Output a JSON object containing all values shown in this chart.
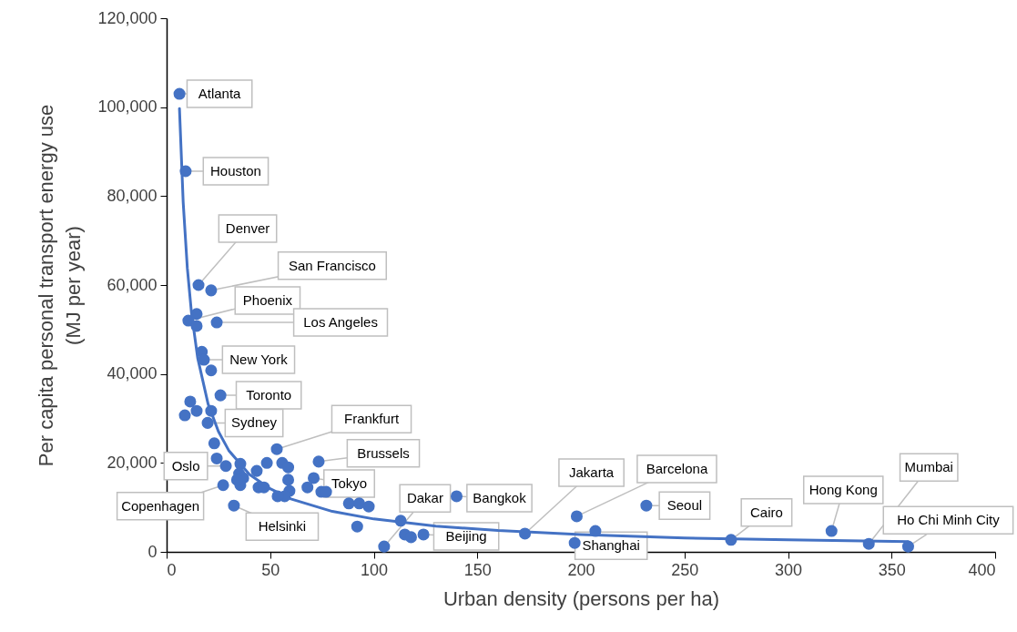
{
  "chart_data": {
    "type": "scatter",
    "xlabel": "Urban density (persons per ha)",
    "ylabel": "Per capita personal transport energy use (MJ per year)",
    "xlim": [
      0,
      400
    ],
    "xticks": [
      0,
      50,
      100,
      150,
      200,
      250,
      300,
      350,
      400
    ],
    "ylim": [
      0,
      120000
    ],
    "yticks": [
      0,
      {
        "value": 20000,
        "label": "20,000"
      },
      {
        "value": 40000,
        "label": "40,000"
      },
      {
        "value": 60000,
        "label": "60,000"
      },
      {
        "value": 80000,
        "label": "80,000"
      },
      {
        "value": 100000,
        "label": "100,000"
      },
      {
        "value": 120000,
        "label": "120,000"
      }
    ],
    "grid": false,
    "marker": "circle",
    "series": [
      {
        "color": "#4472c4",
        "x": [
          6.2,
          9.2,
          15.4,
          21.5,
          10.5,
          14.5,
          14.5,
          24.2,
          17,
          18,
          21.5,
          26,
          11.4,
          8.8,
          14.5,
          21.5,
          19.8,
          23,
          28.6,
          24.2,
          35.6,
          35,
          37,
          35.6,
          34,
          43.5,
          48.4,
          44.4,
          47,
          55.8,
          58.7,
          58.7,
          59.3,
          57,
          53.6,
          27.3,
          32.5,
          53.2,
          73.4,
          71,
          68,
          74.7,
          77,
          88,
          93,
          97.6,
          92,
          105,
          113,
          115,
          118,
          124,
          140,
          173,
          198,
          197,
          207,
          231.6,
          272.5,
          321,
          339,
          358
        ],
        "values": [
          103000,
          85600,
          60000,
          58800,
          52000,
          53500,
          50800,
          51600,
          45000,
          43200,
          40800,
          35200,
          33800,
          30700,
          31700,
          31700,
          29000,
          24400,
          19300,
          21000,
          19800,
          17600,
          16600,
          15000,
          16200,
          18200,
          20000,
          14500,
          14500,
          20000,
          19000,
          16200,
          13700,
          12500,
          12500,
          15000,
          10400,
          23100,
          20300,
          16600,
          14500,
          13500,
          13500,
          10900,
          10900,
          10200,
          5700,
          1200,
          7000,
          3900,
          3300,
          3900,
          12500,
          4100,
          8000,
          2000,
          4700,
          10400,
          2700,
          4700,
          1800,
          1200
        ]
      },
      {
        "type": "line",
        "color": "#4472c4",
        "marker": "none",
        "x": [
          6.2,
          8,
          10,
          12,
          15,
          20,
          25,
          30,
          40,
          50,
          60,
          80,
          100,
          130,
          160,
          200,
          250,
          300,
          358
        ],
        "values": [
          99700,
          78600,
          63800,
          53800,
          43600,
          33300,
          27100,
          22800,
          17400,
          14200,
          11900,
          9100,
          7400,
          5800,
          4800,
          3900,
          3100,
          2700,
          2300
        ]
      }
    ],
    "annotations": [
      {
        "text": "Atlanta",
        "x": 6.2,
        "y": 103000
      },
      {
        "text": "Houston",
        "x": 9.2,
        "y": 85600
      },
      {
        "text": "Denver",
        "x": 15.4,
        "y": 60000
      },
      {
        "text": "San Francisco",
        "x": 21.5,
        "y": 58800
      },
      {
        "text": "Phoenix",
        "x": 10.5,
        "y": 52000
      },
      {
        "text": "Los Angeles",
        "x": 24.2,
        "y": 51600
      },
      {
        "text": "New York",
        "x": 18,
        "y": 43200
      },
      {
        "text": "Toronto",
        "x": 26,
        "y": 35200
      },
      {
        "text": "Sydney",
        "x": 19.8,
        "y": 29000
      },
      {
        "text": "Frankfurt",
        "x": 53.2,
        "y": 23100
      },
      {
        "text": "Brussels",
        "x": 73.4,
        "y": 20300
      },
      {
        "text": "Oslo",
        "x": 28.6,
        "y": 19300
      },
      {
        "text": "Tokyo",
        "x": 71,
        "y": 16600
      },
      {
        "text": "Copenhagen",
        "x": 27.3,
        "y": 15000
      },
      {
        "text": "Helsinki",
        "x": 32.5,
        "y": 10400
      },
      {
        "text": "Dakar",
        "x": 105,
        "y": 1200
      },
      {
        "text": "Beijing",
        "x": 124,
        "y": 3900
      },
      {
        "text": "Bangkok",
        "x": 140,
        "y": 12500
      },
      {
        "text": "Jakarta",
        "x": 173,
        "y": 4100
      },
      {
        "text": "Barcelona",
        "x": 198,
        "y": 8000
      },
      {
        "text": "Seoul",
        "x": 231.6,
        "y": 10400
      },
      {
        "text": "Shanghai",
        "x": 197,
        "y": 2000
      },
      {
        "text": "Cairo",
        "x": 272.5,
        "y": 2700
      },
      {
        "text": "Hong Kong",
        "x": 321,
        "y": 4700
      },
      {
        "text": "Mumbai",
        "x": 339,
        "y": 1800
      },
      {
        "text": "Ho Chi Minh City",
        "x": 358,
        "y": 1200
      }
    ]
  }
}
